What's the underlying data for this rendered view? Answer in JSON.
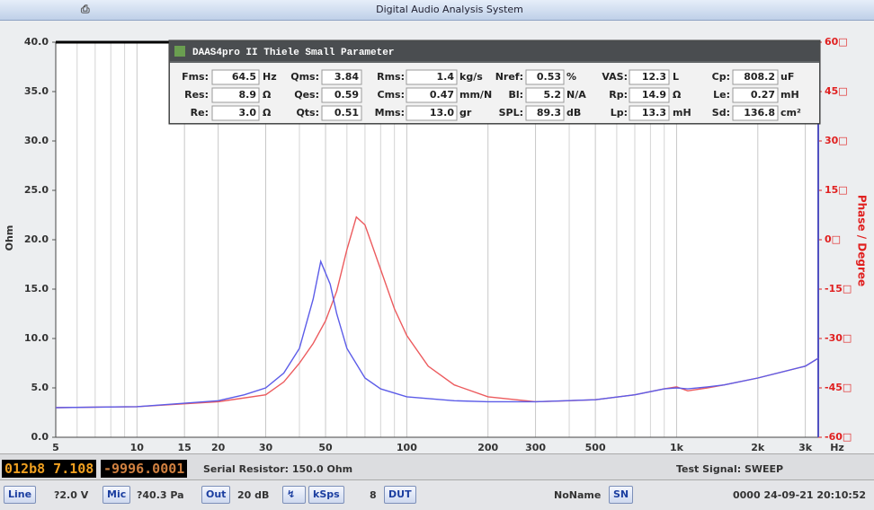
{
  "window_title": "Digital Audio Analysis System",
  "chart_data": {
    "type": "line",
    "xscale": "log",
    "grid": "x",
    "ylabel": "Ohm",
    "y2label": "Phase / Degree",
    "x_unit": "Hz",
    "xlim": [
      5,
      3350
    ],
    "ylim": [
      0,
      40
    ],
    "y2lim": [
      -60,
      60
    ],
    "xticks": [
      5,
      10,
      15,
      20,
      30,
      50,
      100,
      200,
      300,
      500,
      {
        "value": 1000,
        "label": "1k"
      },
      {
        "value": 2000,
        "label": "2k"
      },
      {
        "value": 3000,
        "label": "3k"
      }
    ],
    "xminor": [
      6,
      7,
      8,
      9,
      40,
      60,
      70,
      80,
      90,
      400,
      600,
      700,
      800,
      900
    ],
    "yticks": [
      {
        "value": 0,
        "label": "0.0"
      },
      {
        "value": 5,
        "label": "5.0"
      },
      {
        "value": 10,
        "label": "10.0"
      },
      {
        "value": 15,
        "label": "15.0"
      },
      {
        "value": 20,
        "label": "20.0"
      },
      {
        "value": 25,
        "label": "25.0"
      },
      {
        "value": 30,
        "label": "30.0"
      },
      {
        "value": 35,
        "label": "35.0"
      },
      {
        "value": 40,
        "label": "40.0"
      }
    ],
    "y2ticks": [
      {
        "value": 60,
        "label": "60□"
      },
      {
        "value": 45,
        "label": "45□"
      },
      {
        "value": 30,
        "label": "30□"
      },
      {
        "value": 15,
        "label": "15□"
      },
      {
        "value": 0,
        "label": "0□"
      },
      {
        "value": -15,
        "label": "-15□"
      },
      {
        "value": -30,
        "label": "-30□"
      },
      {
        "value": -45,
        "label": "-45□"
      },
      {
        "value": -60,
        "label": "-60□"
      }
    ],
    "series": [
      {
        "color": "#ec5b5e",
        "x": [
          5,
          10,
          20,
          30,
          35,
          40,
          45,
          50,
          55,
          60,
          65,
          70,
          80,
          90,
          100,
          120,
          150,
          200,
          300,
          400,
          500,
          700,
          900,
          1000,
          1100,
          1300,
          1500,
          2000,
          3000,
          3350
        ],
        "values": [
          3.0,
          3.1,
          3.6,
          4.3,
          5.6,
          7.5,
          9.5,
          11.8,
          14.8,
          19.0,
          22.3,
          21.5,
          17.0,
          13.0,
          10.3,
          7.2,
          5.3,
          4.1,
          3.6,
          3.7,
          3.8,
          4.3,
          4.9,
          5.1,
          4.7,
          5.0,
          5.3,
          6.0,
          7.2,
          8.0
        ]
      },
      {
        "color": "#5c5ce8",
        "x": [
          5,
          10,
          20,
          25,
          30,
          35,
          40,
          45,
          48,
          52,
          55,
          60,
          70,
          80,
          100,
          150,
          200,
          300,
          500,
          700,
          900,
          1000,
          1100,
          1300,
          1500,
          2000,
          3000,
          3350
        ],
        "values": [
          3.0,
          3.1,
          3.7,
          4.3,
          5.0,
          6.5,
          9.0,
          14.0,
          17.8,
          15.5,
          12.5,
          9.0,
          6.0,
          4.9,
          4.1,
          3.7,
          3.6,
          3.6,
          3.8,
          4.3,
          4.9,
          5.0,
          4.9,
          5.1,
          5.3,
          6.0,
          7.2,
          8.0
        ]
      }
    ]
  },
  "params": {
    "title": "DAAS4pro II Thiele Small Parameter",
    "rows": [
      [
        {
          "label": "Fms:",
          "value": "64.5",
          "unit": "Hz"
        },
        {
          "label": "Qms:",
          "value": "3.84"
        },
        {
          "label": "Rms:",
          "value": "1.4",
          "unit": "kg/s"
        },
        {
          "label": "Nref:",
          "value": "0.53",
          "unit": "%"
        },
        {
          "label": "VAS:",
          "value": "12.3",
          "unit": "L"
        },
        {
          "label": "Cp:",
          "value": "808.2",
          "unit": "uF"
        }
      ],
      [
        {
          "label": "Res:",
          "value": "8.9",
          "unit": "Ω"
        },
        {
          "label": "Qes:",
          "value": "0.59"
        },
        {
          "label": "Cms:",
          "value": "0.47",
          "unit": "mm/N"
        },
        {
          "label": "Bl:",
          "value": "5.2",
          "unit": "N/A"
        },
        {
          "label": "Rp:",
          "value": "14.9",
          "unit": "Ω"
        },
        {
          "label": "Le:",
          "value": "0.27",
          "unit": "mH"
        }
      ],
      [
        {
          "label": "Re:",
          "value": "3.0",
          "unit": "Ω"
        },
        {
          "label": "Qts:",
          "value": "0.51"
        },
        {
          "label": "Mms:",
          "value": "13.0",
          "unit": "gr"
        },
        {
          "label": "SPL:",
          "value": "89.3",
          "unit": "dB"
        },
        {
          "label": "Lp:",
          "value": "13.3",
          "unit": "mH"
        },
        {
          "label": "Sd:",
          "value": "136.8",
          "unit": "cm²"
        }
      ]
    ]
  },
  "status": {
    "lcd": [
      "012b8 7.108",
      "-9996.0001"
    ],
    "serial": "Serial Resistor: 150.0 Ohm",
    "signal": "Test Signal: SWEEP"
  },
  "toolbar": {
    "line": "Line",
    "voltage": "?2.0 V",
    "mic": "Mic",
    "pressure": "?40.3 Pa",
    "out": "Out",
    "gain": "20 dB",
    "ksps": "kSps",
    "count": "8",
    "dut": "DUT",
    "name": "NoName",
    "sn": "SN",
    "timestamp": "0000 24-09-21 20:10:52"
  }
}
